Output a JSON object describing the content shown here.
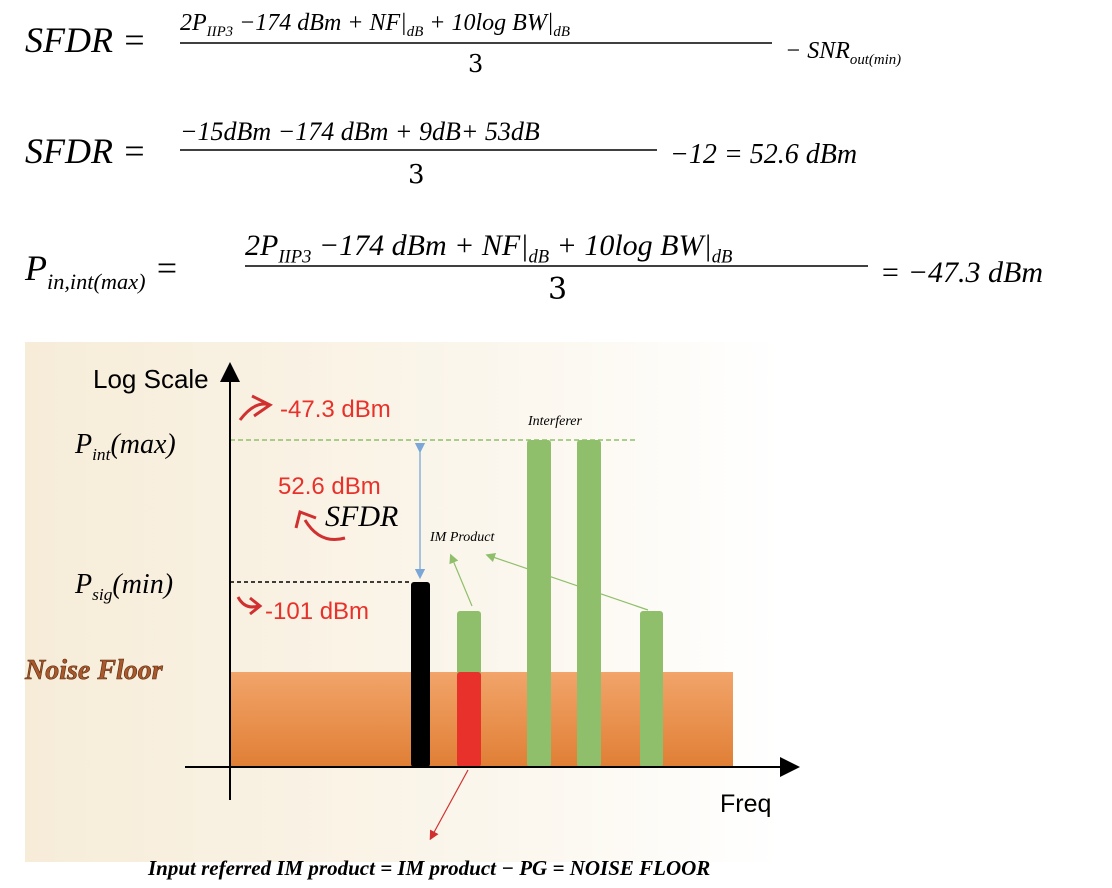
{
  "equations": [
    {
      "lhs": [
        "SFDR",
        " ="
      ],
      "numerator": [
        "2P",
        [
          "IIP3"
        ],
        " −174 dBm + NF|",
        [
          "dB"
        ],
        " + 10log BW|",
        [
          "dB"
        ]
      ],
      "denominator": "3",
      "tail": [
        "− SNR",
        [
          "out(min)"
        ]
      ]
    },
    {
      "lhs": [
        "SFDR",
        " ="
      ],
      "numerator": [
        "−15dBm −174 dBm + 9dB+ 53dB"
      ],
      "denominator": "3",
      "tail": [
        "−12 = 52.6 dBm"
      ]
    },
    {
      "lhs": [
        "P",
        [
          "in,int(max)"
        ],
        " ="
      ],
      "numerator": [
        "2P",
        [
          "IIP3"
        ],
        " −174 dBm + NF|",
        [
          "dB"
        ],
        " + 10log BW|",
        [
          "dB"
        ]
      ],
      "denominator": "3",
      "tail": [
        "= −47.3 dBm"
      ]
    }
  ],
  "diagram": {
    "y_axis_label": "Log Scale",
    "x_axis_label": "Freq",
    "p_int_label": [
      "P",
      [
        "int"
      ],
      "(max)"
    ],
    "p_sig_label": [
      "P",
      [
        "sig"
      ],
      "(min)"
    ],
    "noise_floor_label": "Noise Floor",
    "annotations": [
      "-47.3 dBm",
      "52.6 dBm",
      "-101 dBm"
    ],
    "sfdr_label": "SFDR",
    "interferer_label": "Interferer",
    "im_product_label": "IM Product",
    "footnote": "Input referred IM product = IM product − PG = NOISE FLOOR"
  }
}
